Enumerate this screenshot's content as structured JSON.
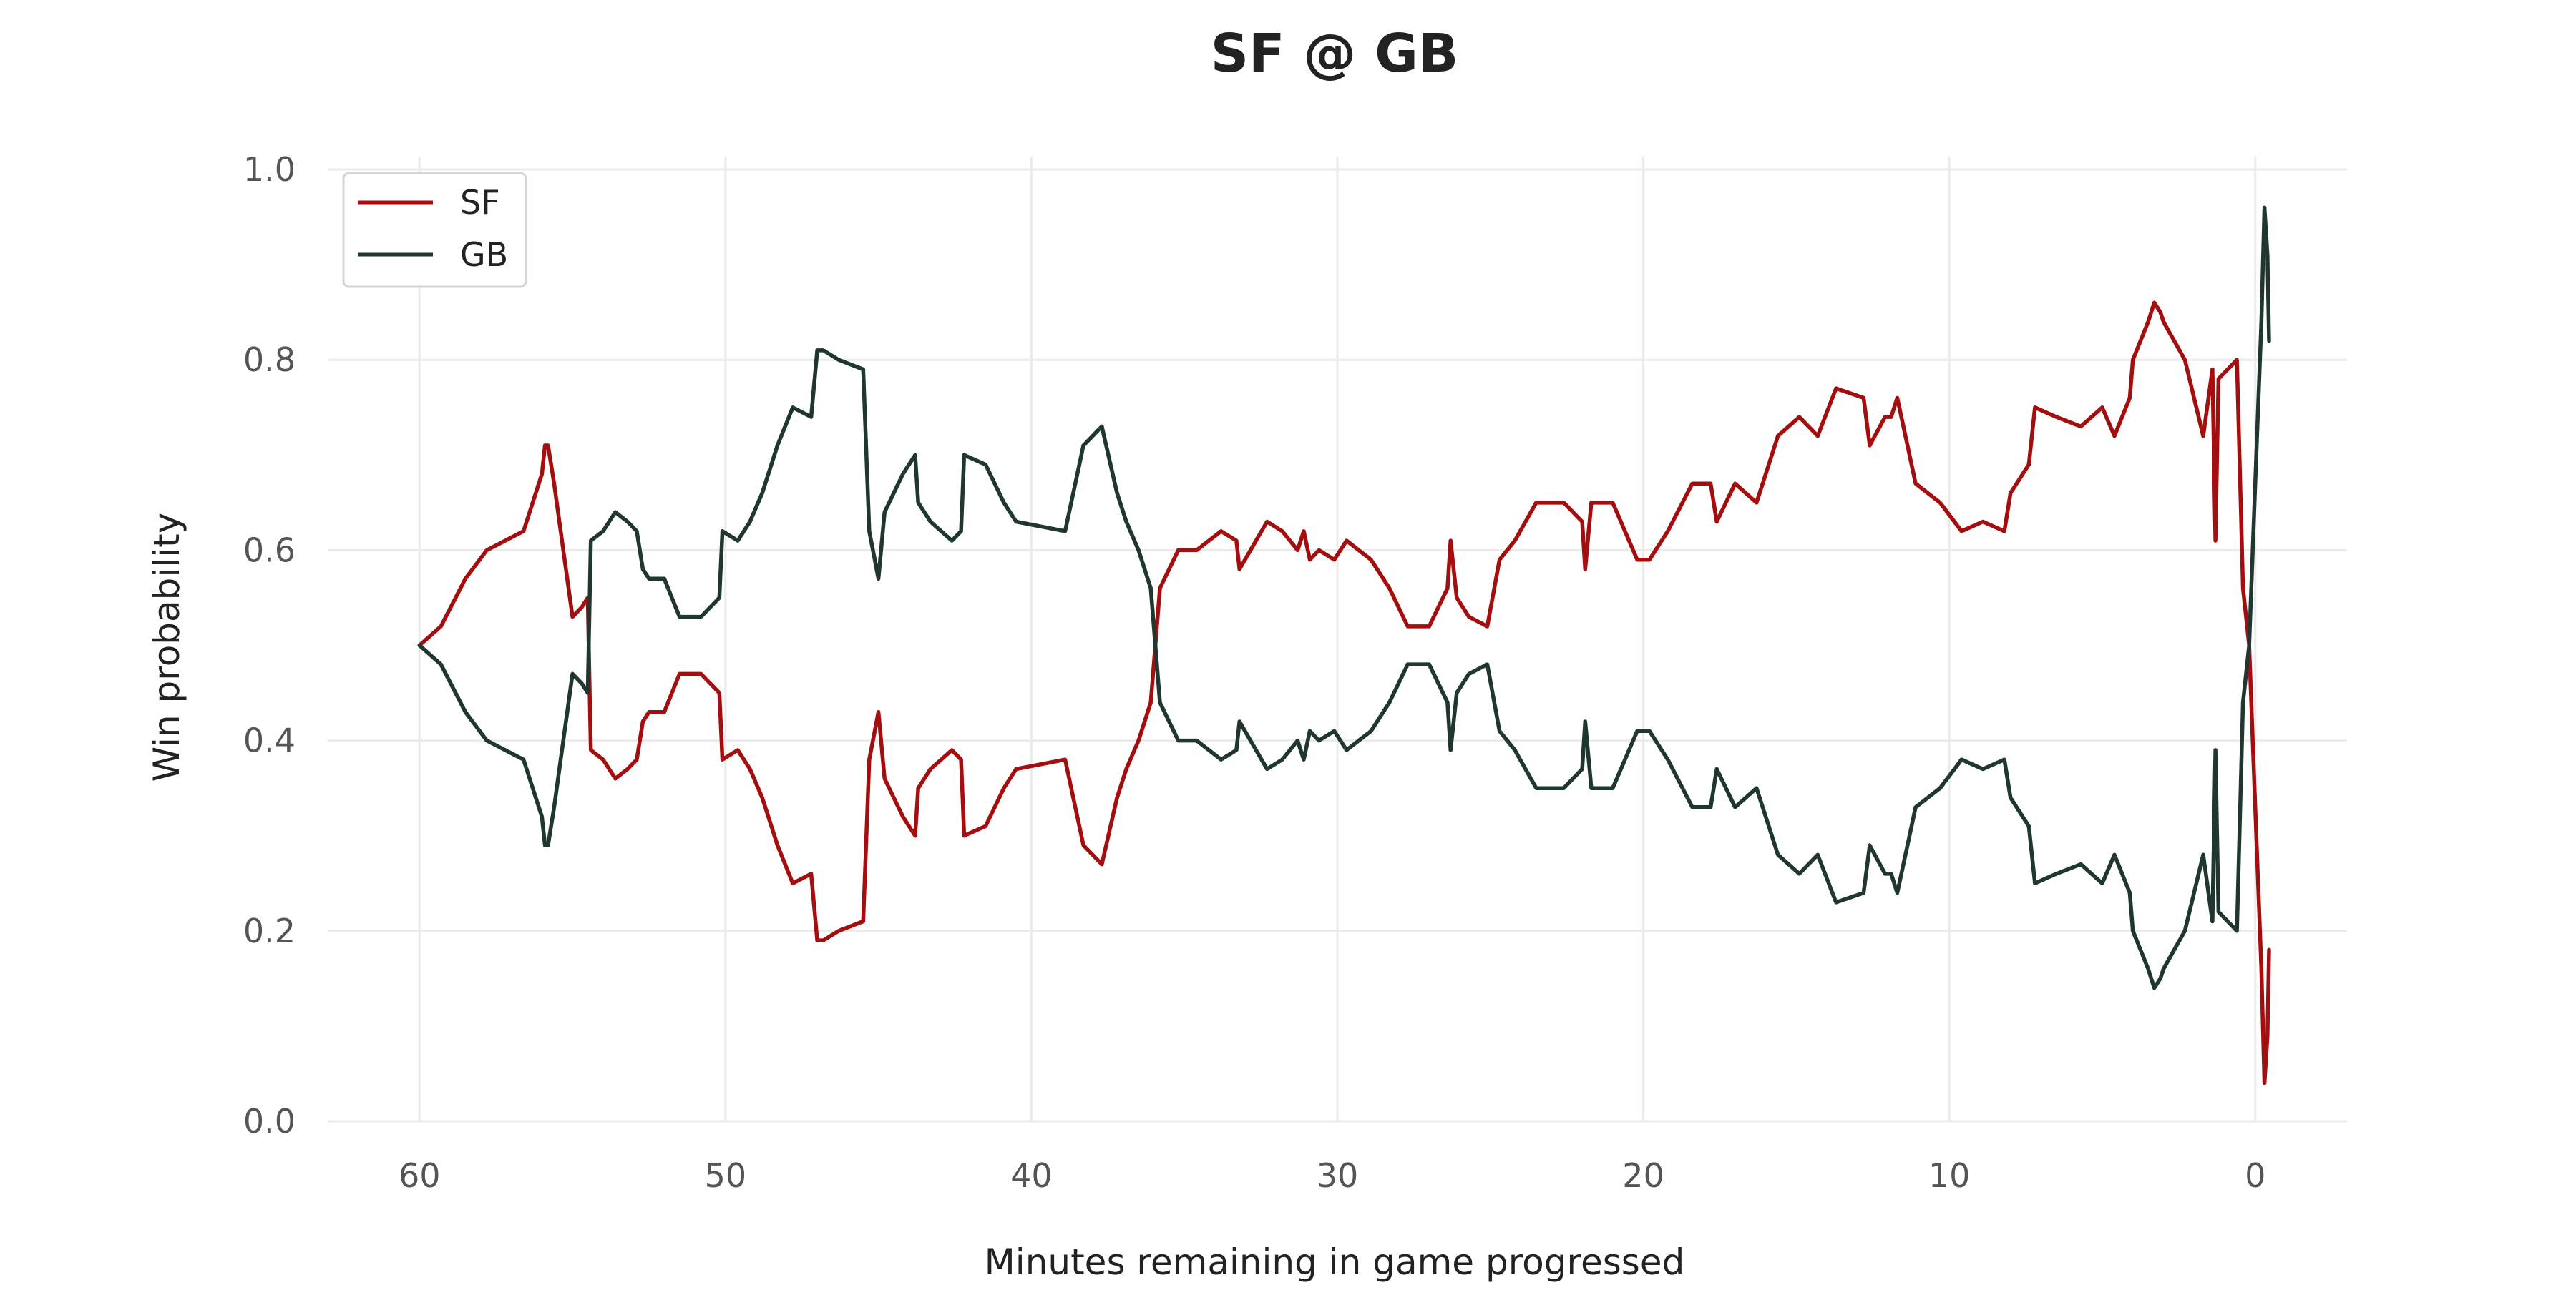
{
  "chart_data": {
    "type": "line",
    "title": "SF @ GB",
    "xlabel": "Minutes remaining in game progressed",
    "ylabel": "Win probability",
    "xlim": [
      63,
      -3
    ],
    "ylim": [
      0,
      1
    ],
    "x_reversed": true,
    "grid": true,
    "legend_position": "top-left",
    "xticks": [
      60,
      50,
      40,
      30,
      20,
      10,
      0
    ],
    "yticks": [
      0.0,
      0.2,
      0.4,
      0.6,
      0.8,
      1.0
    ],
    "xtick_labels": [
      "60",
      "50",
      "40",
      "30",
      "20",
      "10",
      "0"
    ],
    "ytick_labels": [
      "0.0",
      "0.2",
      "0.4",
      "0.6",
      "0.8",
      "1.0"
    ],
    "series": [
      {
        "name": "SF",
        "color": "#a50e0e",
        "points": [
          [
            60,
            0.5
          ],
          [
            59.3,
            0.52
          ],
          [
            58.5,
            0.57
          ],
          [
            57.8,
            0.6
          ],
          [
            57.2,
            0.61
          ],
          [
            56.6,
            0.62
          ],
          [
            56.0,
            0.68
          ],
          [
            55.9,
            0.71
          ],
          [
            55.8,
            0.71
          ],
          [
            55.6,
            0.67
          ],
          [
            55.3,
            0.6
          ],
          [
            55.0,
            0.53
          ],
          [
            54.7,
            0.54
          ],
          [
            54.5,
            0.55
          ],
          [
            54.4,
            0.39
          ],
          [
            54.0,
            0.38
          ],
          [
            53.6,
            0.36
          ],
          [
            53.2,
            0.37
          ],
          [
            52.9,
            0.38
          ],
          [
            52.7,
            0.42
          ],
          [
            52.5,
            0.43
          ],
          [
            52.0,
            0.43
          ],
          [
            51.5,
            0.47
          ],
          [
            50.8,
            0.47
          ],
          [
            50.2,
            0.45
          ],
          [
            50.1,
            0.38
          ],
          [
            49.6,
            0.39
          ],
          [
            49.2,
            0.37
          ],
          [
            48.8,
            0.34
          ],
          [
            48.3,
            0.29
          ],
          [
            47.8,
            0.25
          ],
          [
            47.2,
            0.26
          ],
          [
            47.0,
            0.19
          ],
          [
            46.8,
            0.19
          ],
          [
            46.3,
            0.2
          ],
          [
            45.5,
            0.21
          ],
          [
            45.3,
            0.38
          ],
          [
            45.0,
            0.43
          ],
          [
            44.8,
            0.36
          ],
          [
            44.2,
            0.32
          ],
          [
            43.8,
            0.3
          ],
          [
            43.7,
            0.35
          ],
          [
            43.3,
            0.37
          ],
          [
            42.6,
            0.39
          ],
          [
            42.3,
            0.38
          ],
          [
            42.2,
            0.3
          ],
          [
            41.5,
            0.31
          ],
          [
            40.9,
            0.35
          ],
          [
            40.5,
            0.37
          ],
          [
            38.9,
            0.38
          ],
          [
            38.3,
            0.29
          ],
          [
            37.7,
            0.27
          ],
          [
            37.2,
            0.34
          ],
          [
            37.1,
            0.35
          ],
          [
            36.9,
            0.37
          ],
          [
            36.5,
            0.4
          ],
          [
            36.1,
            0.44
          ],
          [
            35.8,
            0.56
          ],
          [
            35.2,
            0.6
          ],
          [
            34.6,
            0.6
          ],
          [
            33.8,
            0.62
          ],
          [
            33.3,
            0.61
          ],
          [
            33.2,
            0.58
          ],
          [
            32.3,
            0.63
          ],
          [
            31.8,
            0.62
          ],
          [
            31.3,
            0.6
          ],
          [
            31.1,
            0.62
          ],
          [
            30.9,
            0.59
          ],
          [
            30.6,
            0.6
          ],
          [
            30.1,
            0.59
          ],
          [
            29.7,
            0.61
          ],
          [
            28.9,
            0.59
          ],
          [
            28.3,
            0.56
          ],
          [
            27.7,
            0.52
          ],
          [
            27.0,
            0.52
          ],
          [
            26.4,
            0.56
          ],
          [
            26.3,
            0.61
          ],
          [
            26.1,
            0.55
          ],
          [
            25.7,
            0.53
          ],
          [
            25.1,
            0.52
          ],
          [
            24.7,
            0.59
          ],
          [
            24.2,
            0.61
          ],
          [
            23.5,
            0.65
          ],
          [
            22.6,
            0.65
          ],
          [
            22.0,
            0.63
          ],
          [
            21.9,
            0.58
          ],
          [
            21.7,
            0.65
          ],
          [
            21.0,
            0.65
          ],
          [
            20.2,
            0.59
          ],
          [
            19.8,
            0.59
          ],
          [
            19.2,
            0.62
          ],
          [
            18.4,
            0.67
          ],
          [
            17.8,
            0.67
          ],
          [
            17.6,
            0.63
          ],
          [
            17.0,
            0.67
          ],
          [
            16.3,
            0.65
          ],
          [
            15.6,
            0.72
          ],
          [
            14.9,
            0.74
          ],
          [
            14.3,
            0.72
          ],
          [
            13.7,
            0.77
          ],
          [
            12.8,
            0.76
          ],
          [
            12.6,
            0.71
          ],
          [
            12.1,
            0.74
          ],
          [
            11.9,
            0.74
          ],
          [
            11.7,
            0.76
          ],
          [
            11.1,
            0.67
          ],
          [
            10.3,
            0.65
          ],
          [
            9.6,
            0.62
          ],
          [
            8.9,
            0.63
          ],
          [
            8.2,
            0.62
          ],
          [
            8.0,
            0.66
          ],
          [
            7.4,
            0.69
          ],
          [
            7.2,
            0.75
          ],
          [
            6.5,
            0.74
          ],
          [
            5.7,
            0.73
          ],
          [
            5.0,
            0.75
          ],
          [
            4.6,
            0.72
          ],
          [
            4.1,
            0.76
          ],
          [
            4.0,
            0.8
          ],
          [
            3.5,
            0.84
          ],
          [
            3.3,
            0.86
          ],
          [
            3.1,
            0.85
          ],
          [
            3.0,
            0.84
          ],
          [
            2.3,
            0.8
          ],
          [
            1.7,
            0.72
          ],
          [
            1.4,
            0.79
          ],
          [
            1.3,
            0.61
          ],
          [
            1.2,
            0.78
          ],
          [
            0.9,
            0.79
          ],
          [
            0.6,
            0.8
          ],
          [
            0.4,
            0.56
          ],
          [
            0.2,
            0.5
          ],
          [
            0.0,
            0.33
          ],
          [
            -0.2,
            0.16
          ],
          [
            -0.3,
            0.04
          ],
          [
            -0.4,
            0.09
          ],
          [
            -0.45,
            0.18
          ]
        ]
      },
      {
        "name": "GB",
        "color": "#203731",
        "points": [
          [
            60,
            0.5
          ],
          [
            59.3,
            0.48
          ],
          [
            58.5,
            0.43
          ],
          [
            57.8,
            0.4
          ],
          [
            57.2,
            0.39
          ],
          [
            56.6,
            0.38
          ],
          [
            56.0,
            0.32
          ],
          [
            55.9,
            0.29
          ],
          [
            55.8,
            0.29
          ],
          [
            55.6,
            0.33
          ],
          [
            55.3,
            0.4
          ],
          [
            55.0,
            0.47
          ],
          [
            54.7,
            0.46
          ],
          [
            54.5,
            0.45
          ],
          [
            54.4,
            0.61
          ],
          [
            54.0,
            0.62
          ],
          [
            53.6,
            0.64
          ],
          [
            53.2,
            0.63
          ],
          [
            52.9,
            0.62
          ],
          [
            52.7,
            0.58
          ],
          [
            52.5,
            0.57
          ],
          [
            52.0,
            0.57
          ],
          [
            51.5,
            0.53
          ],
          [
            50.8,
            0.53
          ],
          [
            50.2,
            0.55
          ],
          [
            50.1,
            0.62
          ],
          [
            49.6,
            0.61
          ],
          [
            49.2,
            0.63
          ],
          [
            48.8,
            0.66
          ],
          [
            48.3,
            0.71
          ],
          [
            47.8,
            0.75
          ],
          [
            47.2,
            0.74
          ],
          [
            47.0,
            0.81
          ],
          [
            46.8,
            0.81
          ],
          [
            46.3,
            0.8
          ],
          [
            45.5,
            0.79
          ],
          [
            45.3,
            0.62
          ],
          [
            45.0,
            0.57
          ],
          [
            44.8,
            0.64
          ],
          [
            44.2,
            0.68
          ],
          [
            43.8,
            0.7
          ],
          [
            43.7,
            0.65
          ],
          [
            43.3,
            0.63
          ],
          [
            42.6,
            0.61
          ],
          [
            42.3,
            0.62
          ],
          [
            42.2,
            0.7
          ],
          [
            41.5,
            0.69
          ],
          [
            40.9,
            0.65
          ],
          [
            40.5,
            0.63
          ],
          [
            38.9,
            0.62
          ],
          [
            38.3,
            0.71
          ],
          [
            37.7,
            0.73
          ],
          [
            37.2,
            0.66
          ],
          [
            37.1,
            0.65
          ],
          [
            36.9,
            0.63
          ],
          [
            36.5,
            0.6
          ],
          [
            36.1,
            0.56
          ],
          [
            35.8,
            0.44
          ],
          [
            35.2,
            0.4
          ],
          [
            34.6,
            0.4
          ],
          [
            33.8,
            0.38
          ],
          [
            33.3,
            0.39
          ],
          [
            33.2,
            0.42
          ],
          [
            32.3,
            0.37
          ],
          [
            31.8,
            0.38
          ],
          [
            31.3,
            0.4
          ],
          [
            31.1,
            0.38
          ],
          [
            30.9,
            0.41
          ],
          [
            30.6,
            0.4
          ],
          [
            30.1,
            0.41
          ],
          [
            29.7,
            0.39
          ],
          [
            28.9,
            0.41
          ],
          [
            28.3,
            0.44
          ],
          [
            27.7,
            0.48
          ],
          [
            27.0,
            0.48
          ],
          [
            26.4,
            0.44
          ],
          [
            26.3,
            0.39
          ],
          [
            26.1,
            0.45
          ],
          [
            25.7,
            0.47
          ],
          [
            25.1,
            0.48
          ],
          [
            24.7,
            0.41
          ],
          [
            24.2,
            0.39
          ],
          [
            23.5,
            0.35
          ],
          [
            22.6,
            0.35
          ],
          [
            22.0,
            0.37
          ],
          [
            21.9,
            0.42
          ],
          [
            21.7,
            0.35
          ],
          [
            21.0,
            0.35
          ],
          [
            20.2,
            0.41
          ],
          [
            19.8,
            0.41
          ],
          [
            19.2,
            0.38
          ],
          [
            18.4,
            0.33
          ],
          [
            17.8,
            0.33
          ],
          [
            17.6,
            0.37
          ],
          [
            17.0,
            0.33
          ],
          [
            16.3,
            0.35
          ],
          [
            15.6,
            0.28
          ],
          [
            14.9,
            0.26
          ],
          [
            14.3,
            0.28
          ],
          [
            13.7,
            0.23
          ],
          [
            12.8,
            0.24
          ],
          [
            12.6,
            0.29
          ],
          [
            12.1,
            0.26
          ],
          [
            11.9,
            0.26
          ],
          [
            11.7,
            0.24
          ],
          [
            11.1,
            0.33
          ],
          [
            10.3,
            0.35
          ],
          [
            9.6,
            0.38
          ],
          [
            8.9,
            0.37
          ],
          [
            8.2,
            0.38
          ],
          [
            8.0,
            0.34
          ],
          [
            7.4,
            0.31
          ],
          [
            7.2,
            0.25
          ],
          [
            6.5,
            0.26
          ],
          [
            5.7,
            0.27
          ],
          [
            5.0,
            0.25
          ],
          [
            4.6,
            0.28
          ],
          [
            4.1,
            0.24
          ],
          [
            4.0,
            0.2
          ],
          [
            3.5,
            0.16
          ],
          [
            3.3,
            0.14
          ],
          [
            3.1,
            0.15
          ],
          [
            3.0,
            0.16
          ],
          [
            2.3,
            0.2
          ],
          [
            1.7,
            0.28
          ],
          [
            1.4,
            0.21
          ],
          [
            1.3,
            0.39
          ],
          [
            1.2,
            0.22
          ],
          [
            0.9,
            0.21
          ],
          [
            0.6,
            0.2
          ],
          [
            0.4,
            0.44
          ],
          [
            0.2,
            0.5
          ],
          [
            0.0,
            0.67
          ],
          [
            -0.2,
            0.84
          ],
          [
            -0.3,
            0.96
          ],
          [
            -0.4,
            0.91
          ],
          [
            -0.45,
            0.82
          ]
        ]
      }
    ]
  }
}
